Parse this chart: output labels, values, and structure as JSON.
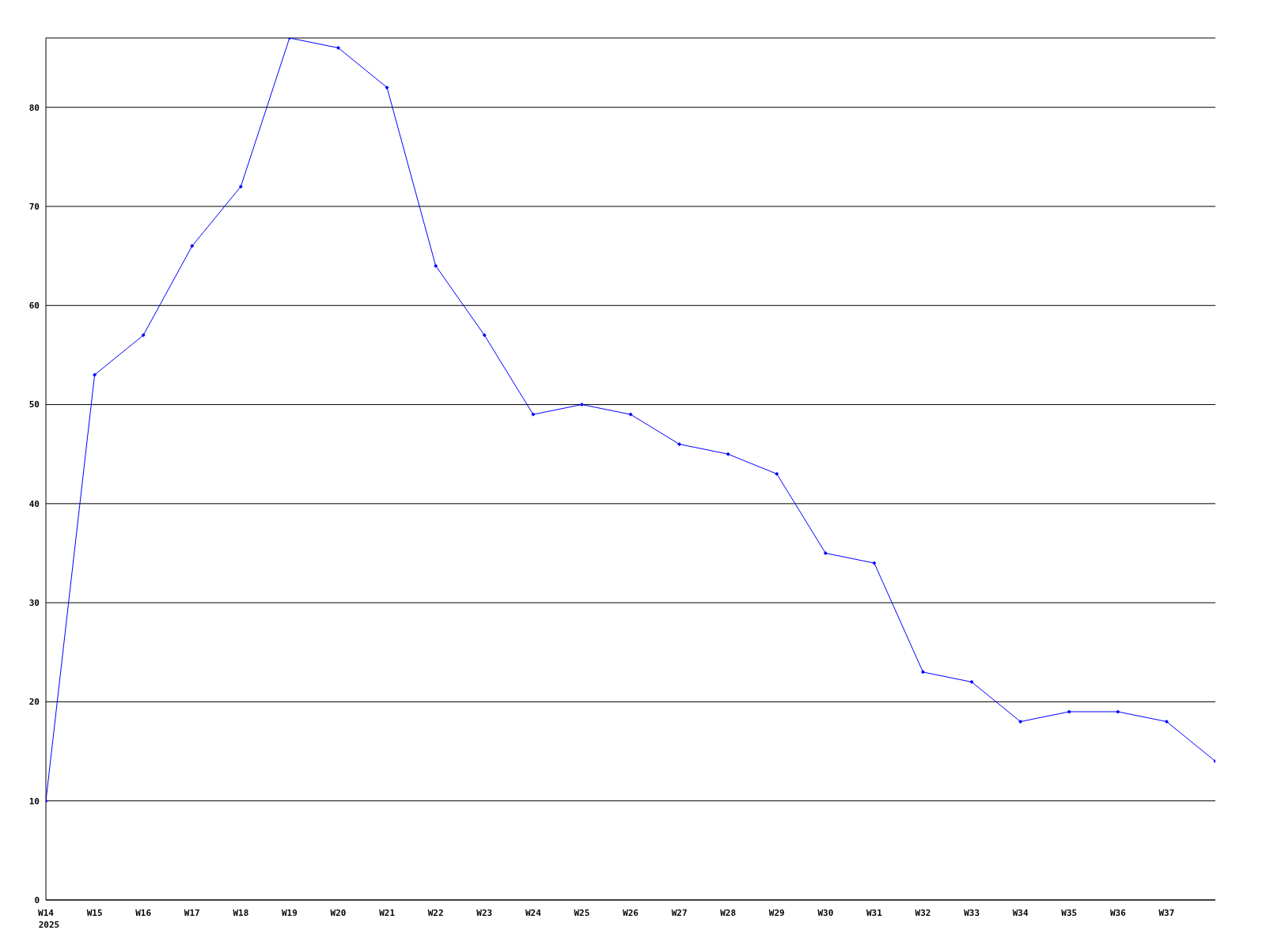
{
  "chart_data": {
    "type": "line",
    "categories": [
      "W14",
      "W15",
      "W16",
      "W17",
      "W18",
      "W19",
      "W20",
      "W21",
      "W22",
      "W23",
      "W24",
      "W25",
      "W26",
      "W27",
      "W28",
      "W29",
      "W30",
      "W31",
      "W32",
      "W33",
      "W34",
      "W35",
      "W36",
      "W37",
      null
    ],
    "series": [
      {
        "color": "#0000ff",
        "values": [
          10,
          53,
          57,
          66,
          72,
          87,
          86,
          82,
          64,
          57,
          49,
          50,
          49,
          46,
          45,
          43,
          35,
          34,
          23,
          22,
          18,
          19,
          19,
          18,
          14
        ]
      }
    ],
    "ylim": [
      0,
      87
    ],
    "yticks": [
      0,
      10,
      20,
      30,
      40,
      50,
      60,
      70,
      80
    ],
    "grid": "y",
    "marker": "diamond",
    "line_style": "solid",
    "annotations": [
      "2025"
    ]
  }
}
